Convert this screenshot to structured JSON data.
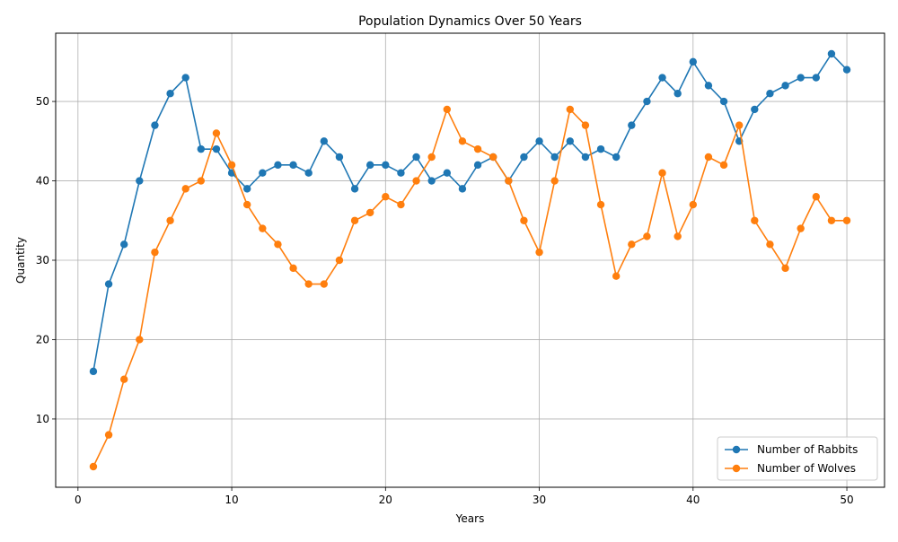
{
  "chart_data": {
    "type": "line",
    "title": "Population Dynamics Over 50 Years",
    "xlabel": "Years",
    "ylabel": "Quantity",
    "xlim": [
      -1.45,
      52.45
    ],
    "ylim": [
      1.4,
      58.6
    ],
    "xticks": [
      0,
      10,
      20,
      30,
      40,
      50
    ],
    "yticks": [
      10,
      20,
      30,
      40,
      50
    ],
    "grid": true,
    "legend_position": "bottom-right",
    "x": [
      1,
      2,
      3,
      4,
      5,
      6,
      7,
      8,
      9,
      10,
      11,
      12,
      13,
      14,
      15,
      16,
      17,
      18,
      19,
      20,
      21,
      22,
      23,
      24,
      25,
      26,
      27,
      28,
      29,
      30,
      31,
      32,
      33,
      34,
      35,
      36,
      37,
      38,
      39,
      40,
      41,
      42,
      43,
      44,
      45,
      46,
      47,
      48,
      49,
      50
    ],
    "series": [
      {
        "name": "Number of Rabbits",
        "color": "#1f77b4",
        "values": [
          16,
          27,
          32,
          40,
          47,
          51,
          53,
          44,
          44,
          41,
          39,
          41,
          42,
          42,
          41,
          45,
          43,
          39,
          42,
          42,
          41,
          43,
          40,
          41,
          39,
          42,
          43,
          40,
          43,
          45,
          43,
          45,
          43,
          44,
          43,
          47,
          50,
          53,
          51,
          55,
          52,
          50,
          45,
          49,
          51,
          52,
          53,
          53,
          56,
          54
        ]
      },
      {
        "name": "Number of Wolves",
        "color": "#ff7f0e",
        "values": [
          4,
          8,
          15,
          20,
          31,
          35,
          39,
          40,
          46,
          42,
          37,
          34,
          32,
          29,
          27,
          27,
          30,
          35,
          36,
          38,
          37,
          40,
          43,
          49,
          45,
          44,
          43,
          40,
          35,
          31,
          40,
          49,
          47,
          37,
          28,
          32,
          33,
          41,
          33,
          37,
          43,
          42,
          47,
          35,
          32,
          29,
          34,
          38,
          35,
          35
        ]
      }
    ]
  }
}
